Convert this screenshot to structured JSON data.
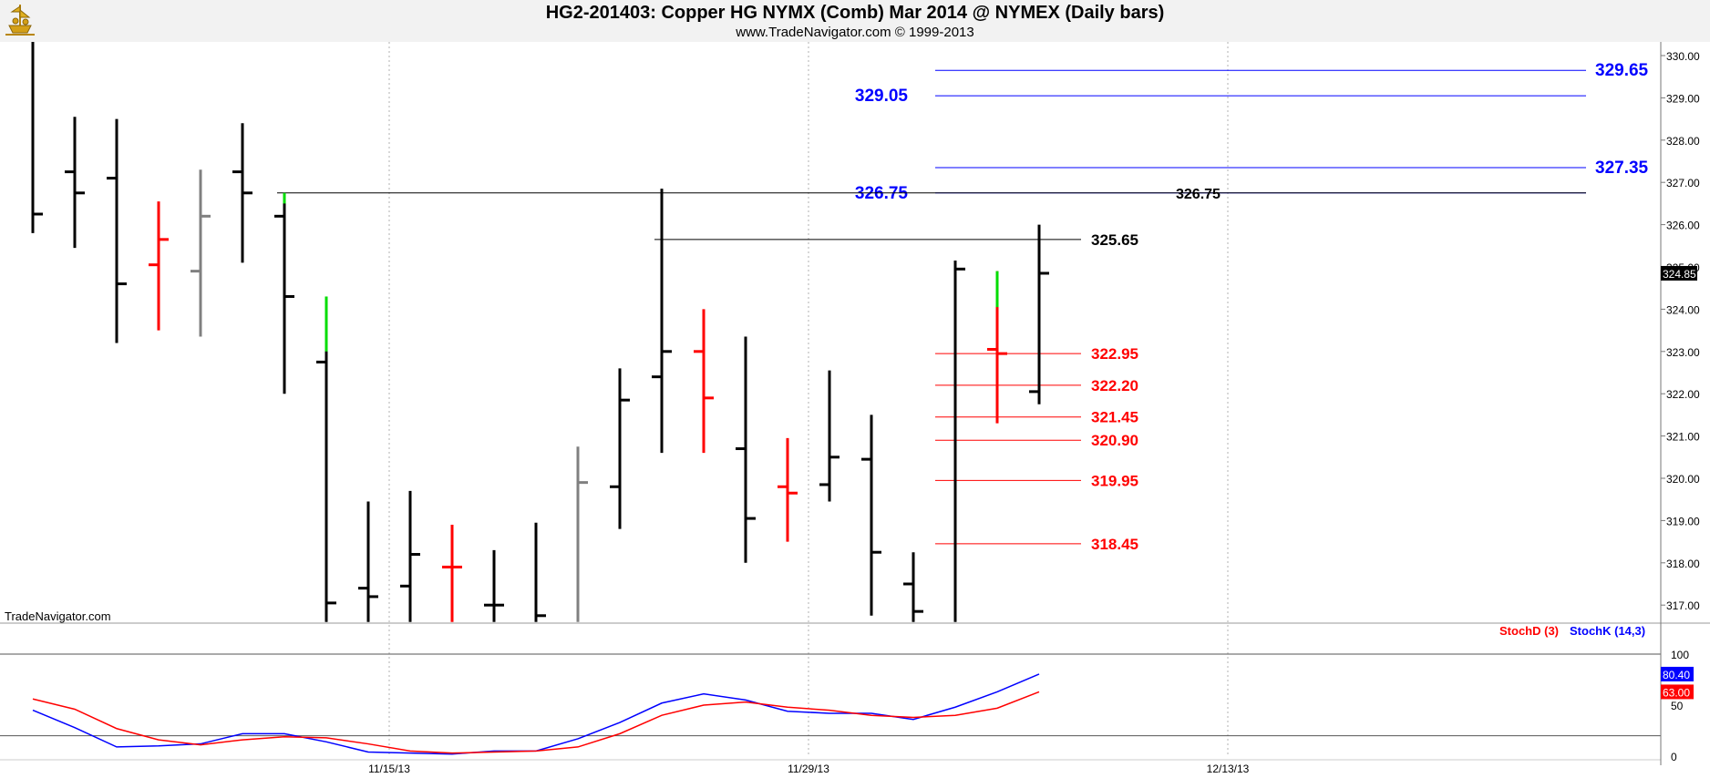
{
  "header": {
    "title": "HG2-201403:  Copper HG NYMX (Comb) Mar 2014 @ NYMEX  (Daily bars)",
    "subtitle": "www.TradeNavigator.com © 1999-2013"
  },
  "watermark": "TradeNavigator.com",
  "colors": {
    "up_bar": "#000000",
    "down_bar": "#ff0000",
    "neutral_bar": "#808080",
    "limit_tick": "#00dd00",
    "stoch_k": "#0000ff",
    "stoch_d": "#ff0000"
  },
  "chart_data": [
    {
      "type": "ohlc",
      "price_axis": {
        "ylim": [
          316.6,
          330.4
        ],
        "ticks": [
          "317.00",
          "318.00",
          "319.00",
          "320.00",
          "321.00",
          "322.00",
          "323.00",
          "324.00",
          "325.00",
          "326.00",
          "327.00",
          "328.00",
          "329.00",
          "330.00"
        ],
        "last_price_label": "324.85"
      },
      "date_labels": [
        {
          "bar_index": 8.5,
          "label": "11/15/13"
        },
        {
          "bar_index": 18.5,
          "label": "11/29/13"
        },
        {
          "bar_index": 28.5,
          "label": "12/13/13"
        }
      ],
      "bars": [
        {
          "h": 330.4,
          "l": 325.8,
          "o": null,
          "c": 326.25,
          "color": "up"
        },
        {
          "h": 328.55,
          "l": 325.45,
          "o": 327.25,
          "c": 326.75,
          "color": "up"
        },
        {
          "h": 328.5,
          "l": 323.2,
          "o": 327.1,
          "c": 324.6,
          "color": "up"
        },
        {
          "h": 326.55,
          "l": 323.5,
          "o": 325.05,
          "c": 325.65,
          "color": "down"
        },
        {
          "h": 327.3,
          "l": 323.35,
          "o": 324.9,
          "c": 326.2,
          "color": "neutral"
        },
        {
          "h": 328.4,
          "l": 325.1,
          "o": 327.25,
          "c": 326.75,
          "color": "up"
        },
        {
          "h": 326.75,
          "l": 322.0,
          "o": 326.2,
          "c": 324.3,
          "color": "up",
          "limit_top": 326.5
        },
        {
          "h": 324.3,
          "l": 316.6,
          "o": 322.75,
          "c": 317.05,
          "color": "up",
          "limit_top": 323.0
        },
        {
          "h": 319.45,
          "l": 316.6,
          "o": 317.4,
          "c": 317.2,
          "color": "up"
        },
        {
          "h": 319.7,
          "l": 316.6,
          "o": 317.45,
          "c": 318.2,
          "color": "up"
        },
        {
          "h": 318.9,
          "l": 316.6,
          "o": 317.9,
          "c": 317.9,
          "color": "down"
        },
        {
          "h": 318.3,
          "l": 316.6,
          "o": 317.0,
          "c": 317.0,
          "color": "up"
        },
        {
          "h": 318.95,
          "l": 316.6,
          "o": null,
          "c": 316.75,
          "color": "up"
        },
        {
          "h": 320.75,
          "l": 316.6,
          "o": null,
          "c": 319.9,
          "color": "neutral"
        },
        {
          "h": 322.6,
          "l": 318.8,
          "o": 319.8,
          "c": 321.85,
          "color": "up"
        },
        {
          "h": 326.85,
          "l": 320.6,
          "o": 322.4,
          "c": 323.0,
          "color": "up"
        },
        {
          "h": 324.0,
          "l": 320.6,
          "o": 323.0,
          "c": 321.9,
          "color": "down"
        },
        {
          "h": 323.35,
          "l": 318.0,
          "o": 320.7,
          "c": 319.05,
          "color": "up"
        },
        {
          "h": 320.95,
          "l": 318.5,
          "o": 319.8,
          "c": 319.65,
          "color": "down"
        },
        {
          "h": 322.55,
          "l": 319.45,
          "o": 319.85,
          "c": 320.5,
          "color": "up"
        },
        {
          "h": 321.5,
          "l": 316.75,
          "o": 320.45,
          "c": 318.25,
          "color": "up"
        },
        {
          "h": 318.25,
          "l": 316.6,
          "o": 317.5,
          "c": 316.85,
          "color": "up"
        },
        {
          "h": 325.15,
          "l": 316.6,
          "o": null,
          "c": 324.95,
          "color": "up"
        },
        {
          "h": 324.9,
          "l": 321.3,
          "o": 323.05,
          "c": 322.95,
          "color": "down",
          "limit_top": 324.05
        },
        {
          "h": 326.0,
          "l": 321.75,
          "o": 322.05,
          "c": 324.85,
          "color": "up"
        }
      ],
      "levels": [
        {
          "value": 329.65,
          "label": "329.65",
          "color": "#0000ff",
          "from_bar": 22,
          "label_side": "right"
        },
        {
          "value": 329.05,
          "label": "329.05",
          "color": "#0000ff",
          "from_bar": 22,
          "label_side": "left"
        },
        {
          "value": 327.35,
          "label": "327.35",
          "color": "#0000ff",
          "from_bar": 22,
          "label_side": "right"
        },
        {
          "value": 326.75,
          "label": "326.75",
          "color": "#0000ff",
          "from_bar": 22,
          "label_side": "left"
        },
        {
          "value": 326.75,
          "label": "326.75",
          "color": "#000000",
          "from_bar": 6,
          "label_side": "mid"
        },
        {
          "value": 325.65,
          "label": "325.65",
          "color": "#000000",
          "from_bar": 15,
          "label_side": "short"
        },
        {
          "value": 322.95,
          "label": "322.95",
          "color": "#ff0000",
          "from_bar": 22,
          "label_side": "short"
        },
        {
          "value": 322.2,
          "label": "322.20",
          "color": "#ff0000",
          "from_bar": 22,
          "label_side": "short"
        },
        {
          "value": 321.45,
          "label": "321.45",
          "color": "#ff0000",
          "from_bar": 22,
          "label_side": "short"
        },
        {
          "value": 320.9,
          "label": "320.90",
          "color": "#ff0000",
          "from_bar": 22,
          "label_side": "short"
        },
        {
          "value": 319.95,
          "label": "319.95",
          "color": "#ff0000",
          "from_bar": 22,
          "label_side": "short"
        },
        {
          "value": 318.45,
          "label": "318.45",
          "color": "#ff0000",
          "from_bar": 22,
          "label_side": "short"
        }
      ]
    },
    {
      "type": "line",
      "ylim": [
        0,
        100
      ],
      "ticks": [
        "0",
        "50",
        "100"
      ],
      "legend": [
        {
          "name": "StochD (3)",
          "color": "#ff0000"
        },
        {
          "name": "StochK (14,3)",
          "color": "#0000ff"
        }
      ],
      "series": [
        {
          "name": "StochK (14,3)",
          "values": [
            45,
            28,
            9,
            10,
            12,
            22,
            22,
            14,
            4,
            3,
            2,
            5,
            5,
            17,
            33,
            52,
            61,
            55,
            44,
            42,
            42,
            36,
            48,
            63,
            80.4
          ]
        },
        {
          "name": "StochD (3)",
          "values": [
            56,
            46,
            27,
            16,
            11,
            16,
            19,
            18,
            12,
            5,
            3,
            4,
            5,
            9,
            22,
            40,
            50,
            53,
            48,
            45,
            40,
            38,
            40,
            47,
            63
          ]
        }
      ],
      "last_values": [
        {
          "label": "80.40",
          "color": "#0000ff"
        },
        {
          "label": "63.00",
          "color": "#ff0000"
        }
      ]
    }
  ]
}
